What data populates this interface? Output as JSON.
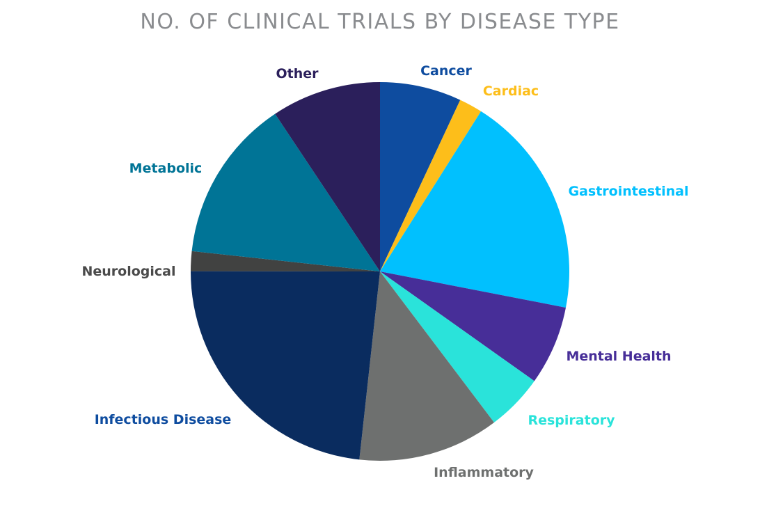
{
  "title": "NO. OF CLINICAL TRIALS BY DISEASE TYPE",
  "chart_data": {
    "type": "pie",
    "title": "NO. OF CLINICAL TRIALS BY DISEASE TYPE",
    "legend": "none (slice labels beside slices)",
    "categories": [
      "Cancer",
      "Cardiac",
      "Gastrointestinal",
      "Mental Health",
      "Respiratory",
      "Inflammatory",
      "Infectious Disease",
      "Neurological",
      "Metabolic",
      "Other"
    ],
    "values": [
      7.0,
      2.0,
      19.2,
      6.8,
      4.9,
      12.1,
      23.4,
      1.7,
      14.0,
      9.4
    ],
    "unit": "percent share (estimated)",
    "colors": [
      "#0e4c9f",
      "#fdbe1a",
      "#01c0fe",
      "#472e98",
      "#2ae3da",
      "#6e706f",
      "#0a2c5f",
      "#414241",
      "#007496",
      "#2b1f5b"
    ],
    "label_colors": [
      "#0e4c9f",
      "#fdbe1a",
      "#01c0fe",
      "#472e98",
      "#2ae3da",
      "#6e706f",
      "#0e4c9f",
      "#4a4a4a",
      "#007496",
      "#2b1f5b"
    ],
    "start_position": "12 o'clock",
    "direction": "clockwise"
  }
}
